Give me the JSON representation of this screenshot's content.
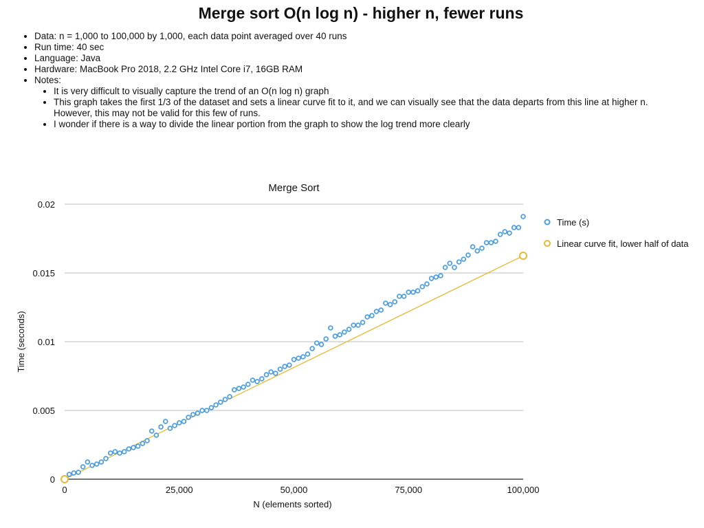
{
  "slide": {
    "title": "Merge sort O(n log n) - higher n, fewer runs",
    "bullets": [
      "Data: n = 1,000 to 100,000 by 1,000, each data point averaged over 40 runs",
      "Run time: 40 sec",
      "Language: Java",
      "Hardware: MacBook Pro 2018, 2.2 GHz Intel Core i7, 16GB RAM",
      "Notes:"
    ],
    "sub_bullets": [
      "It is very difficult to visually capture the trend of an O(n log n) graph",
      "This graph takes the first 1/3 of the dataset and sets a linear curve fit to it, and we can visually see that the data departs from this line at higher n. However, this may not be valid for this few of runs.",
      "I wonder if there is a way to divide the linear portion from the graph to show the log trend more clearly"
    ]
  },
  "chart_data": {
    "type": "scatter",
    "title": "Merge Sort",
    "xlabel": "N (elements sorted)",
    "ylabel": "Time (seconds)",
    "xlim": [
      0,
      100000
    ],
    "ylim": [
      0,
      0.02
    ],
    "x_ticks": [
      0,
      25000,
      50000,
      75000,
      100000
    ],
    "x_tick_labels": [
      "0",
      "25,000",
      "50,000",
      "75,000",
      "100,000"
    ],
    "y_ticks": [
      0,
      0.005,
      0.01,
      0.015,
      0.02
    ],
    "y_tick_labels": [
      "0",
      "0.005",
      "0.01",
      "0.015",
      "0.02"
    ],
    "grid": "horizontal",
    "legend_position": "right",
    "series": [
      {
        "name": "Time (s)",
        "color": "#4a9de0",
        "marker": "circle-open",
        "x": [
          1000,
          2000,
          3000,
          4000,
          5000,
          6000,
          7000,
          8000,
          9000,
          10000,
          11000,
          12000,
          13000,
          14000,
          15000,
          16000,
          17000,
          18000,
          19000,
          20000,
          21000,
          22000,
          23000,
          24000,
          25000,
          26000,
          27000,
          28000,
          29000,
          30000,
          31000,
          32000,
          33000,
          34000,
          35000,
          36000,
          37000,
          38000,
          39000,
          40000,
          41000,
          42000,
          43000,
          44000,
          45000,
          46000,
          47000,
          48000,
          49000,
          50000,
          51000,
          52000,
          53000,
          54000,
          55000,
          56000,
          57000,
          58000,
          59000,
          60000,
          61000,
          62000,
          63000,
          64000,
          65000,
          66000,
          67000,
          68000,
          69000,
          70000,
          71000,
          72000,
          73000,
          74000,
          75000,
          76000,
          77000,
          78000,
          79000,
          80000,
          81000,
          82000,
          83000,
          84000,
          85000,
          86000,
          87000,
          88000,
          89000,
          90000,
          91000,
          92000,
          93000,
          94000,
          95000,
          96000,
          97000,
          98000,
          99000,
          100000
        ],
        "y": [
          0.00035,
          0.00045,
          0.0005,
          0.0009,
          0.00125,
          0.001,
          0.0011,
          0.00125,
          0.0015,
          0.0019,
          0.002,
          0.0019,
          0.002,
          0.0022,
          0.0023,
          0.0024,
          0.0026,
          0.0028,
          0.0035,
          0.0032,
          0.0038,
          0.0042,
          0.0037,
          0.0039,
          0.0041,
          0.0042,
          0.0045,
          0.0047,
          0.0048,
          0.005,
          0.005,
          0.0052,
          0.0054,
          0.0056,
          0.0058,
          0.006,
          0.0065,
          0.0066,
          0.0067,
          0.0069,
          0.0072,
          0.0071,
          0.0073,
          0.0076,
          0.0078,
          0.0077,
          0.008,
          0.0082,
          0.0083,
          0.0087,
          0.0088,
          0.0089,
          0.0091,
          0.0095,
          0.0099,
          0.0098,
          0.0102,
          0.011,
          0.0104,
          0.0105,
          0.0107,
          0.0109,
          0.0112,
          0.0112,
          0.0114,
          0.0118,
          0.0119,
          0.0122,
          0.0123,
          0.0128,
          0.0127,
          0.0129,
          0.0133,
          0.0133,
          0.0136,
          0.0136,
          0.0137,
          0.014,
          0.0142,
          0.0146,
          0.0147,
          0.0148,
          0.0154,
          0.0157,
          0.0154,
          0.0158,
          0.016,
          0.0163,
          0.0169,
          0.0166,
          0.0168,
          0.0172,
          0.0172,
          0.0173,
          0.0178,
          0.018,
          0.0179,
          0.0183,
          0.0183,
          0.0191
        ]
      },
      {
        "name": "Linear curve fit, lower half of data",
        "color": "#e8b830",
        "marker": "circle-open",
        "x": [
          0,
          100000
        ],
        "y": [
          0,
          0.01625
        ]
      }
    ]
  }
}
